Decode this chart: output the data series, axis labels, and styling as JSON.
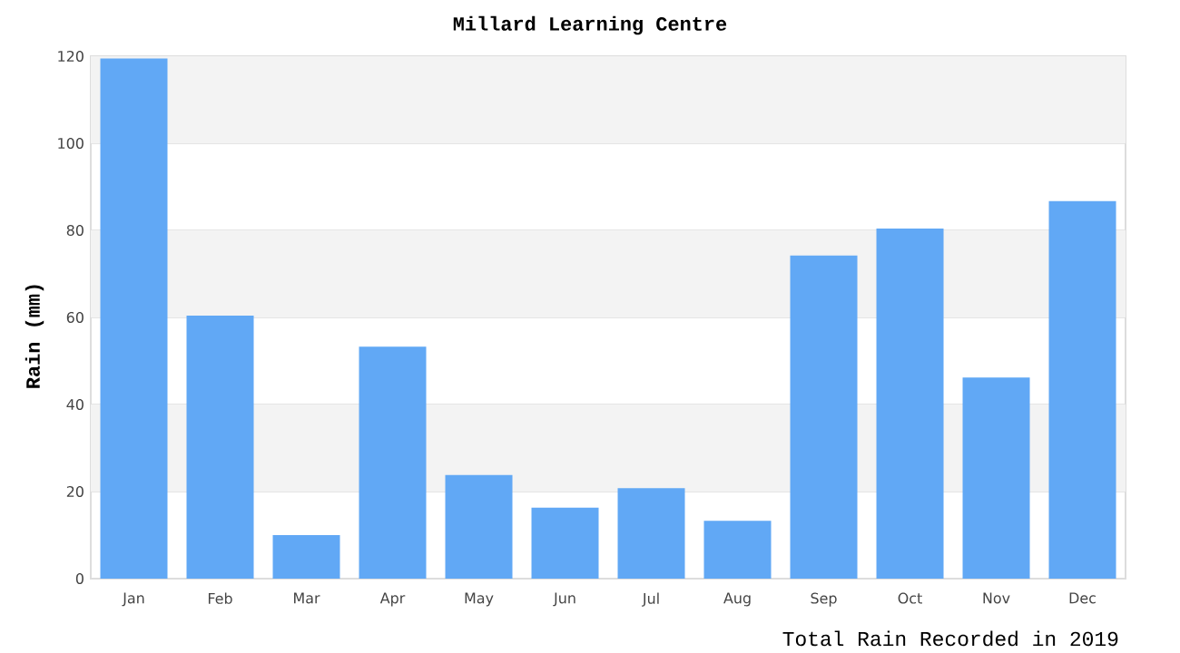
{
  "chart_data": {
    "type": "bar",
    "title": "Millard Learning Centre",
    "xlabel": "Total Rain Recorded in 2019",
    "ylabel": "Rain (mm)",
    "categories": [
      "Jan",
      "Feb",
      "Mar",
      "Apr",
      "May",
      "Jun",
      "Jul",
      "Aug",
      "Sep",
      "Oct",
      "Nov",
      "Dec"
    ],
    "values": [
      119.5,
      60.4,
      10,
      53.3,
      23.8,
      16.3,
      20.8,
      13.3,
      74.2,
      80.4,
      46.2,
      86.7
    ],
    "color": "#61a8f5",
    "ylim": [
      0,
      120
    ],
    "yticks": [
      0,
      20,
      40,
      60,
      80,
      100,
      120
    ],
    "grid": true
  }
}
